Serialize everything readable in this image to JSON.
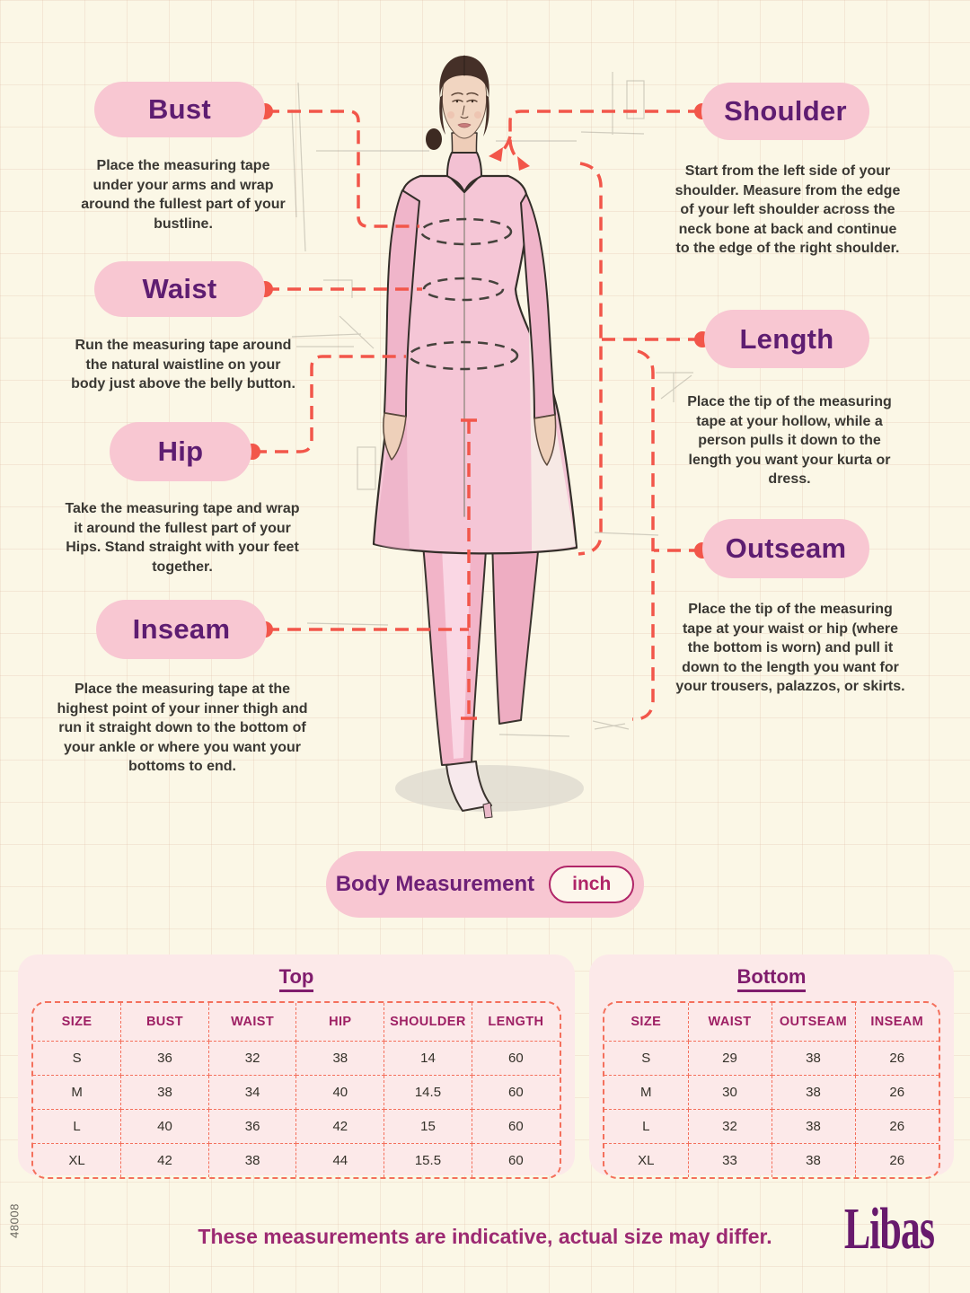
{
  "measurements": {
    "bust": {
      "label": "Bust",
      "desc": "Place the measuring tape under your arms and wrap around the fullest part of your bustline."
    },
    "waist": {
      "label": "Waist",
      "desc": "Run the measuring tape around the natural waistline on your body just above the belly button."
    },
    "hip": {
      "label": "Hip",
      "desc": "Take the measuring tape and wrap it around the fullest part of your Hips. Stand straight with your feet together."
    },
    "inseam": {
      "label": "Inseam",
      "desc": "Place the measuring tape at the highest point of your inner thigh and run it straight down to the bottom of your ankle or where you want your bottoms to end."
    },
    "shoulder": {
      "label": "Shoulder",
      "desc": "Start from the left side of your shoulder. Measure from the edge of your left shoulder across the neck bone at back and continue to the edge of the right shoulder."
    },
    "length": {
      "label": "Length",
      "desc": "Place the tip of the measuring tape at your hollow, while a person pulls it down to the length you want your kurta or dress."
    },
    "outseam": {
      "label": "Outseam",
      "desc": "Place the tip of the measuring tape at your waist or hip (where the bottom is worn) and pull it down to the length you want for your trousers, palazzos, or skirts."
    }
  },
  "measure_bar": {
    "title": "Body Measurement",
    "unit": "inch"
  },
  "tables": {
    "top": {
      "title": "Top",
      "headers": [
        "SIZE",
        "BUST",
        "WAIST",
        "HIP",
        "SHOULDER",
        "LENGTH"
      ],
      "rows": [
        [
          "S",
          "36",
          "32",
          "38",
          "14",
          "60"
        ],
        [
          "M",
          "38",
          "34",
          "40",
          "14.5",
          "60"
        ],
        [
          "L",
          "40",
          "36",
          "42",
          "15",
          "60"
        ],
        [
          "XL",
          "42",
          "38",
          "44",
          "15.5",
          "60"
        ]
      ]
    },
    "bottom": {
      "title": "Bottom",
      "headers": [
        "SIZE",
        "WAIST",
        "OUTSEAM",
        "INSEAM"
      ],
      "rows": [
        [
          "S",
          "29",
          "38",
          "26"
        ],
        [
          "M",
          "30",
          "38",
          "26"
        ],
        [
          "L",
          "32",
          "38",
          "26"
        ],
        [
          "XL",
          "33",
          "38",
          "26"
        ]
      ]
    }
  },
  "footer": {
    "note": "These measurements are indicative, actual size may differ.",
    "brand": "Libas"
  },
  "side_code": "48008",
  "colors": {
    "background": "#fbf7e6",
    "pill_bg": "#f8c7d2",
    "label_text": "#5e1d71",
    "accent_red": "#f2564a",
    "table_bg": "#fce9e9",
    "table_border": "#f4705c",
    "table_header_text": "#9e2064",
    "footer_text": "#9c2a72",
    "brand_purple": "#681a6d"
  }
}
